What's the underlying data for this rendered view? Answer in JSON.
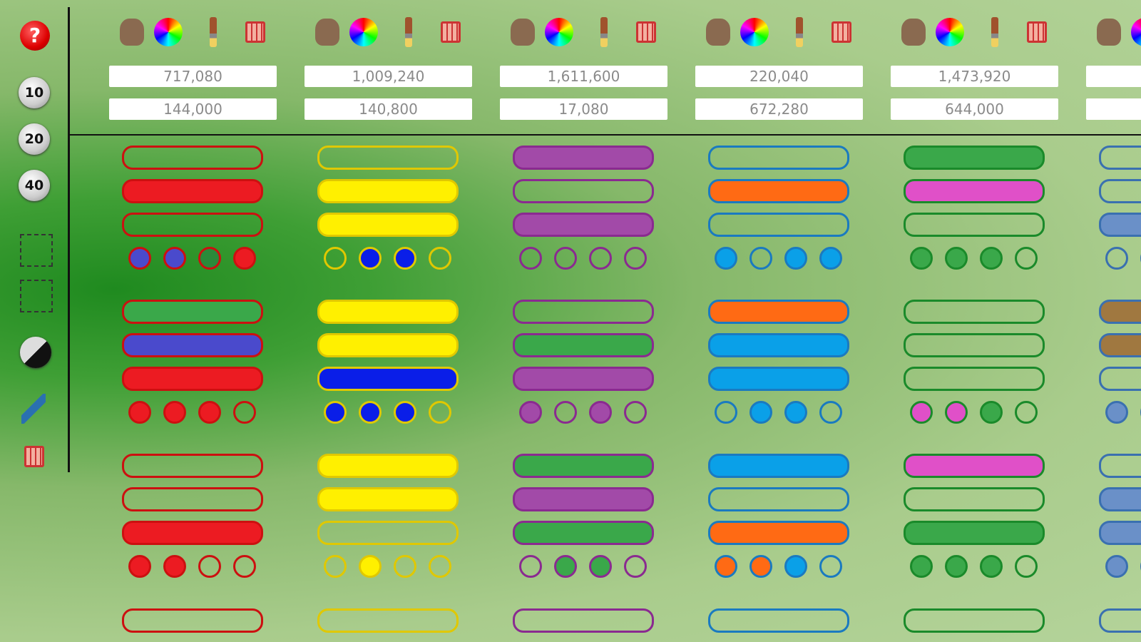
{
  "sidebar": {
    "help": "?",
    "buttons": [
      "10",
      "20",
      "40"
    ]
  },
  "columns": [
    {
      "values": [
        "717,080",
        "144,000"
      ]
    },
    {
      "values": [
        "1,009,240",
        "140,800"
      ]
    },
    {
      "values": [
        "1,611,600",
        "17,080"
      ]
    },
    {
      "values": [
        "220,040",
        "672,280"
      ]
    },
    {
      "values": [
        "1,473,920",
        "644,000"
      ]
    }
  ]
}
